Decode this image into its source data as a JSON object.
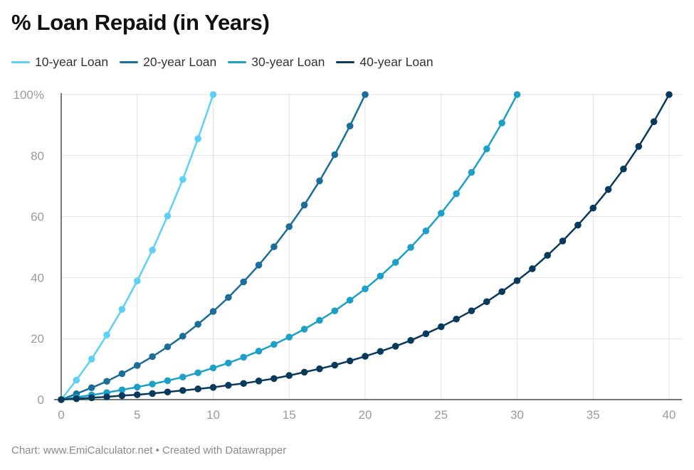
{
  "chart_data": {
    "type": "line",
    "title": "% Loan Repaid (in Years)",
    "xlabel": "",
    "ylabel": "",
    "xlim": [
      0,
      40
    ],
    "ylim": [
      0,
      100
    ],
    "x_ticks": [
      "0",
      "5",
      "10",
      "15",
      "20",
      "25",
      "30",
      "35",
      "40"
    ],
    "y_ticks": [
      "0",
      "20",
      "40",
      "60",
      "80",
      "100%"
    ],
    "grid": true,
    "legend_position": "top-left",
    "series": [
      {
        "name": "10-year Loan",
        "color": "#5dd0f5",
        "x": [
          0,
          1,
          2,
          3,
          4,
          5,
          6,
          7,
          8,
          9,
          10
        ],
        "values": [
          0,
          6.4,
          13.3,
          21.2,
          29.6,
          38.9,
          49.0,
          60.2,
          72.2,
          85.5,
          100
        ]
      },
      {
        "name": "20-year Loan",
        "color": "#1a6e98",
        "x": [
          0,
          1,
          2,
          3,
          4,
          5,
          6,
          7,
          8,
          9,
          10,
          11,
          12,
          13,
          14,
          15,
          16,
          17,
          18,
          19,
          20
        ],
        "values": [
          0,
          1.9,
          3.9,
          6.0,
          8.5,
          11.2,
          14.1,
          17.3,
          20.8,
          24.7,
          28.9,
          33.5,
          38.6,
          44.1,
          50.1,
          56.7,
          63.8,
          71.7,
          80.3,
          89.7,
          100
        ]
      },
      {
        "name": "30-year Loan",
        "color": "#1ca0c8",
        "x": [
          0,
          1,
          2,
          3,
          4,
          5,
          6,
          7,
          8,
          9,
          10,
          11,
          12,
          13,
          14,
          15,
          16,
          17,
          18,
          19,
          20,
          21,
          22,
          23,
          24,
          25,
          26,
          27,
          28,
          29,
          30
        ],
        "values": [
          0,
          0.8,
          1.5,
          2.3,
          3.2,
          4.1,
          5.1,
          6.2,
          7.4,
          8.8,
          10.4,
          12.0,
          13.9,
          15.9,
          18.1,
          20.5,
          23.1,
          26.0,
          29.1,
          32.6,
          36.3,
          40.5,
          45.0,
          49.9,
          55.3,
          61.1,
          67.5,
          74.5,
          82.2,
          90.7,
          100
        ]
      },
      {
        "name": "40-year Loan",
        "color": "#083a5e",
        "x": [
          0,
          1,
          2,
          3,
          4,
          5,
          6,
          7,
          8,
          9,
          10,
          11,
          12,
          13,
          14,
          15,
          16,
          17,
          18,
          19,
          20,
          21,
          22,
          23,
          24,
          25,
          26,
          27,
          28,
          29,
          30,
          31,
          32,
          33,
          34,
          35,
          36,
          37,
          38,
          39,
          40
        ],
        "values": [
          0,
          0.3,
          0.6,
          0.9,
          1.3,
          1.6,
          2.0,
          2.5,
          3.0,
          3.5,
          4.0,
          4.7,
          5.3,
          6.1,
          6.9,
          7.9,
          9.0,
          10.1,
          11.3,
          12.7,
          14.2,
          15.8,
          17.5,
          19.4,
          21.6,
          23.9,
          26.4,
          29.1,
          32.1,
          35.4,
          39.0,
          42.9,
          47.3,
          52.0,
          57.2,
          62.8,
          68.9,
          75.6,
          83.0,
          91.1,
          100
        ]
      }
    ]
  },
  "footer": {
    "credit": "Chart: www.EmiCalculator.net • Created with Datawrapper"
  }
}
